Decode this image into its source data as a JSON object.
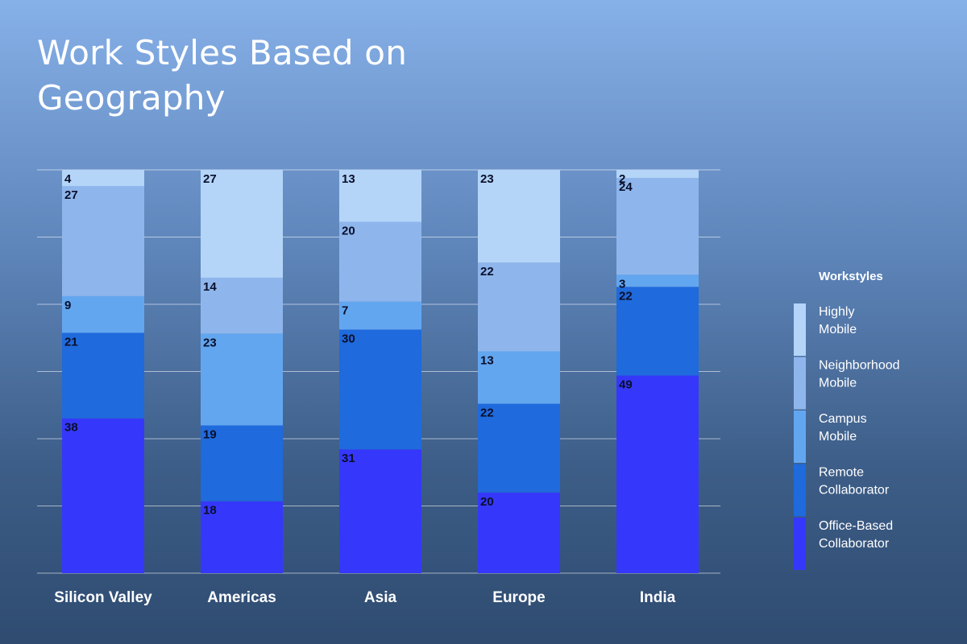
{
  "chart_data": {
    "type": "bar",
    "stacked": true,
    "title": "Work Styles Based on Geography",
    "categories": [
      "Silicon Valley",
      "Americas",
      "Asia",
      "Europe",
      "India"
    ],
    "series": [
      {
        "name": "Office-Based Collaborator",
        "name_lines": [
          "Office-Based",
          "Collaborator"
        ],
        "color": "#3538fa",
        "values": [
          38,
          18,
          31,
          20,
          49
        ]
      },
      {
        "name": "Remote Collaborator",
        "name_lines": [
          "Remote",
          "Collaborator"
        ],
        "color": "#1f6adc",
        "values": [
          21,
          19,
          30,
          22,
          22
        ]
      },
      {
        "name": "Campus Mobile",
        "name_lines": [
          "Campus",
          "Mobile"
        ],
        "color": "#63a6f0",
        "values": [
          9,
          23,
          7,
          13,
          3
        ]
      },
      {
        "name": "Neighborhood Mobile",
        "name_lines": [
          "Neighborhood",
          "Mobile"
        ],
        "color": "#8fb6ec",
        "values": [
          27,
          14,
          20,
          22,
          24
        ]
      },
      {
        "name": "Highly Mobile",
        "name_lines": [
          "Highly",
          "Mobile"
        ],
        "color": "#b4d5f8",
        "values": [
          4,
          27,
          13,
          23,
          2
        ]
      }
    ],
    "legend_title": "Workstyles",
    "legend_position": "right",
    "grid": true,
    "ylim": [
      0,
      100
    ]
  }
}
